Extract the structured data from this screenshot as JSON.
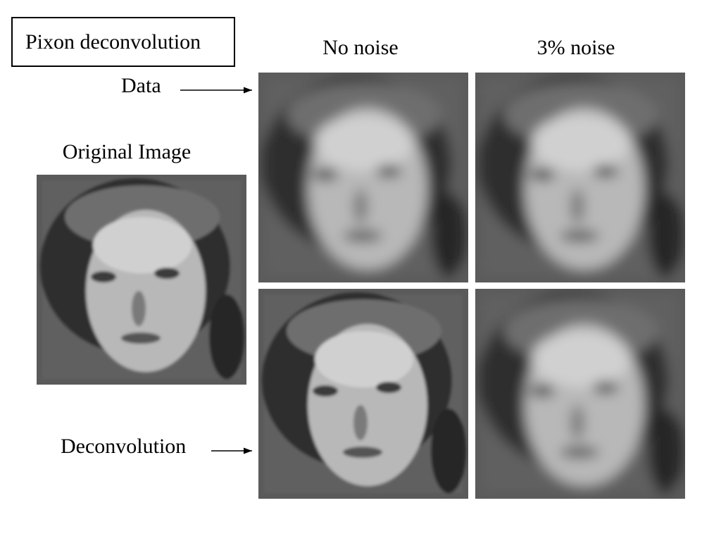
{
  "title": "Pixon deconvolution",
  "columns": [
    "No noise",
    "3% noise"
  ],
  "rows": [
    "Data",
    "Deconvolution"
  ],
  "original_label": "Original Image"
}
